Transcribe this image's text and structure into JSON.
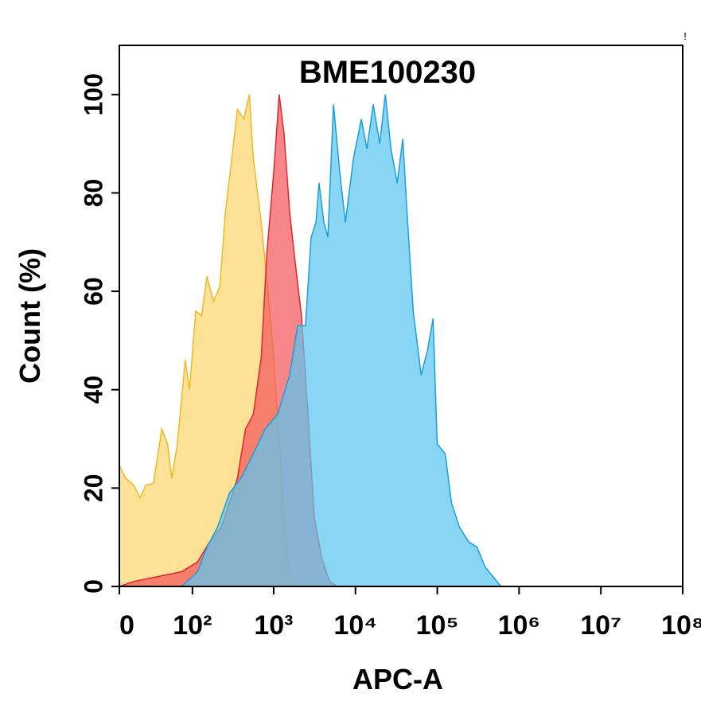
{
  "chart_data": {
    "type": "histogram_overlay",
    "title": "BME100230",
    "corner_mark": "!",
    "xlabel": "APC-A",
    "ylabel": "Count  (%)",
    "xscale": "biexponential",
    "xlim": [
      0,
      100000000
    ],
    "ylim": [
      0,
      110
    ],
    "xticks": [
      {
        "value": 0,
        "label": "0"
      },
      {
        "value": 100,
        "label": "10²"
      },
      {
        "value": 1000,
        "label": "10³"
      },
      {
        "value": 10000,
        "label": "10⁴"
      },
      {
        "value": 100000,
        "label": "10⁵"
      },
      {
        "value": 1000000,
        "label": "10⁶"
      },
      {
        "value": 10000000,
        "label": "10⁷"
      },
      {
        "value": 100000000,
        "label": "10⁸"
      }
    ],
    "yticks": [
      0,
      20,
      40,
      60,
      80,
      100
    ],
    "series": [
      {
        "color": "#f0b823",
        "fill": "#fcd66f",
        "x": [
          0,
          4.7,
          10.8,
          16,
          21,
          29,
          39,
          47,
          54,
          64,
          81,
          92,
          110,
          130,
          152,
          183,
          219,
          256,
          307,
          360,
          431,
          504,
          564,
          705,
          842,
          1000,
          1170,
          1400,
          1680,
          1960
        ],
        "values": [
          24.6,
          22,
          20.6,
          18,
          20.6,
          21,
          32,
          29,
          22,
          29,
          46,
          40,
          56,
          55,
          63,
          58,
          61,
          76,
          87,
          97,
          95,
          100,
          87,
          74,
          61,
          46.5,
          30,
          9,
          1,
          0
        ]
      },
      {
        "color": "#e0262b",
        "fill": "#f2575c",
        "x": [
          0,
          10.8,
          34,
          73,
          116,
          163,
          229,
          288,
          360,
          452,
          564,
          705,
          824,
          1000,
          1170,
          1340,
          1570,
          1830,
          2190,
          2630,
          3140,
          3850,
          4810,
          6020
        ],
        "values": [
          0,
          1,
          2,
          3,
          5,
          9,
          12,
          17,
          22,
          32,
          35,
          46.5,
          67.6,
          84,
          100,
          92,
          76,
          66,
          55,
          35,
          14,
          6,
          1,
          0
        ]
      },
      {
        "color": "#1a9ed8",
        "fill": "#5cc6f0",
        "x": [
          73,
          116,
          152,
          205,
          288,
          400,
          564,
          785,
          1120,
          1570,
          1960,
          2450,
          2870,
          3290,
          3590,
          4110,
          4600,
          5380,
          6440,
          7540,
          9440,
          11800,
          13800,
          16500,
          19800,
          23200,
          27100,
          32400,
          37900,
          42400,
          50800,
          63600,
          76000,
          89000,
          99600,
          125000,
          149000,
          187000,
          244000,
          306000,
          383000,
          479000,
          600000
        ],
        "values": [
          0,
          3,
          8,
          12,
          19,
          22,
          27,
          32,
          35,
          43,
          53,
          53,
          71,
          74,
          82,
          74,
          71,
          98,
          84,
          74,
          87,
          95,
          89,
          98,
          90,
          100,
          89,
          82,
          91,
          77,
          56,
          43,
          48,
          54.5,
          29,
          27,
          17,
          12,
          9,
          8,
          4,
          2,
          0
        ]
      }
    ]
  }
}
